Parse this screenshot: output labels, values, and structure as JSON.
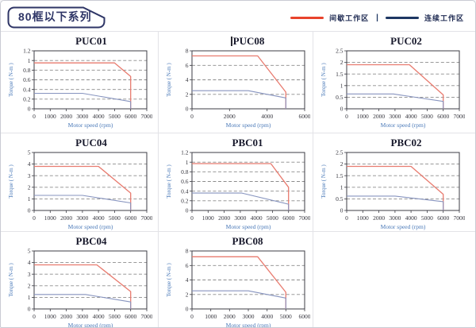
{
  "header": {
    "series_title": "80框以下系列",
    "legend_separator": "|",
    "legend": [
      {
        "name": "intermittent-work-zone",
        "label": "间歇工作区",
        "color": "#e8432c"
      },
      {
        "name": "continuous-work-zone",
        "label": "连续工作区",
        "color": "#1e3763"
      }
    ]
  },
  "colors": {
    "curve_red": "#e87b6f",
    "curve_blue": "#8794bf",
    "grid": "#8c8c8c",
    "axis": "#3c3c44",
    "tick_text": "#33333b",
    "axis_label": "#4a79b8",
    "title_text": "#17182b",
    "tag_border": "#2e3566",
    "cell_separator": "#e3e3e7",
    "page_border": "#c9cbd3"
  },
  "chart_data": [
    {
      "type": "line",
      "title": "PUC01",
      "cursor": false,
      "xlabel": "Motor speed (rpm)",
      "ylabel": "Torque ( N-m )",
      "xlim": [
        0,
        7000
      ],
      "ylim": [
        0,
        1.2
      ],
      "xticks": [
        0,
        1000,
        2000,
        3000,
        4000,
        5000,
        6000,
        7000
      ],
      "yticks": [
        0,
        0.2,
        0.4,
        0.6,
        0.8,
        1,
        1.2
      ],
      "grid": "horizontal-dashed",
      "legend_position": "shared-top-right",
      "series": [
        {
          "name": "间歇工作区",
          "color": "#e87b6f",
          "points": [
            [
              0,
              0.95
            ],
            [
              5000,
              0.95
            ],
            [
              6000,
              0.67
            ],
            [
              6000,
              0
            ]
          ]
        },
        {
          "name": "连续工作区",
          "color": "#8794bf",
          "points": [
            [
              0,
              0.32
            ],
            [
              3000,
              0.32
            ],
            [
              6000,
              0.15
            ],
            [
              6000,
              0
            ]
          ]
        }
      ]
    },
    {
      "type": "line",
      "title": "PUC08",
      "cursor": true,
      "xlabel": "Motor speed (rpm)",
      "ylabel": "Torque ( N-m )",
      "xlim": [
        0,
        6000
      ],
      "ylim": [
        0,
        8
      ],
      "xticks": [
        0,
        2000,
        4000,
        6000
      ],
      "yticks": [
        0,
        2,
        4,
        6,
        8
      ],
      "grid": "horizontal-dashed",
      "legend_position": "shared-top-right",
      "series": [
        {
          "name": "间歇工作区",
          "color": "#e87b6f",
          "points": [
            [
              0,
              7.3
            ],
            [
              3500,
              7.3
            ],
            [
              5000,
              2.3
            ],
            [
              5000,
              0
            ]
          ]
        },
        {
          "name": "连续工作区",
          "color": "#8794bf",
          "points": [
            [
              0,
              2.5
            ],
            [
              3000,
              2.5
            ],
            [
              5000,
              1.5
            ],
            [
              5000,
              0
            ]
          ]
        }
      ]
    },
    {
      "type": "line",
      "title": "PUC02",
      "cursor": false,
      "xlabel": "Motor speed (rpm)",
      "ylabel": "Torque ( N-m )",
      "xlim": [
        0,
        7000
      ],
      "ylim": [
        0,
        2.5
      ],
      "xticks": [
        0,
        1000,
        2000,
        3000,
        4000,
        5000,
        6000,
        7000
      ],
      "yticks": [
        0,
        0.5,
        1,
        1.5,
        2,
        2.5
      ],
      "grid": "horizontal-dashed",
      "legend_position": "shared-top-right",
      "series": [
        {
          "name": "间歇工作区",
          "color": "#e87b6f",
          "points": [
            [
              0,
              1.9
            ],
            [
              3900,
              1.9
            ],
            [
              6000,
              0.6
            ],
            [
              6000,
              0
            ]
          ]
        },
        {
          "name": "连续工作区",
          "color": "#8794bf",
          "points": [
            [
              0,
              0.64
            ],
            [
              2900,
              0.64
            ],
            [
              6000,
              0.32
            ],
            [
              6000,
              0
            ]
          ]
        }
      ]
    },
    {
      "type": "line",
      "title": "PUC04",
      "cursor": false,
      "xlabel": "Motor speed (rpm)",
      "ylabel": "Torque ( N-m )",
      "xlim": [
        0,
        7000
      ],
      "ylim": [
        0,
        5
      ],
      "xticks": [
        0,
        1000,
        2000,
        3000,
        4000,
        5000,
        6000,
        7000
      ],
      "yticks": [
        0,
        1,
        2,
        3,
        4,
        5
      ],
      "grid": "horizontal-dashed",
      "legend_position": "shared-top-right",
      "series": [
        {
          "name": "间歇工作区",
          "color": "#e87b6f",
          "points": [
            [
              0,
              3.8
            ],
            [
              4000,
              3.8
            ],
            [
              6000,
              1.5
            ],
            [
              6000,
              0
            ]
          ]
        },
        {
          "name": "连续工作区",
          "color": "#8794bf",
          "points": [
            [
              0,
              1.3
            ],
            [
              3000,
              1.3
            ],
            [
              6000,
              0.65
            ],
            [
              6000,
              0
            ]
          ]
        }
      ]
    },
    {
      "type": "line",
      "title": "PBC01",
      "cursor": false,
      "xlabel": "Motor speed (rpm)",
      "ylabel": "Torque ( N-m )",
      "xlim": [
        0,
        7000
      ],
      "ylim": [
        0,
        1.2
      ],
      "xticks": [
        0,
        1000,
        2000,
        3000,
        4000,
        5000,
        6000,
        7000
      ],
      "yticks": [
        0,
        0.2,
        0.4,
        0.6,
        0.8,
        1,
        1.2
      ],
      "grid": "horizontal-dashed",
      "legend_position": "shared-top-right",
      "series": [
        {
          "name": "间歇工作区",
          "color": "#e87b6f",
          "points": [
            [
              0,
              0.97
            ],
            [
              4900,
              0.97
            ],
            [
              6000,
              0.48
            ],
            [
              6000,
              0
            ]
          ]
        },
        {
          "name": "连续工作区",
          "color": "#8794bf",
          "points": [
            [
              0,
              0.36
            ],
            [
              3100,
              0.36
            ],
            [
              6000,
              0.13
            ],
            [
              6000,
              0
            ]
          ]
        }
      ]
    },
    {
      "type": "line",
      "title": "PBC02",
      "cursor": false,
      "xlabel": "Motor speed (rpm)",
      "ylabel": "Torque ( N-m )",
      "xlim": [
        0,
        7000
      ],
      "ylim": [
        0,
        2.5
      ],
      "xticks": [
        0,
        1000,
        2000,
        3000,
        4000,
        5000,
        6000,
        7000
      ],
      "yticks": [
        0,
        0.5,
        1,
        1.5,
        2,
        2.5
      ],
      "grid": "horizontal-dashed",
      "legend_position": "shared-top-right",
      "series": [
        {
          "name": "间歇工作区",
          "color": "#e87b6f",
          "points": [
            [
              0,
              1.9
            ],
            [
              4000,
              1.9
            ],
            [
              6000,
              0.7
            ],
            [
              6000,
              0
            ]
          ]
        },
        {
          "name": "连续工作区",
          "color": "#8794bf",
          "points": [
            [
              0,
              0.62
            ],
            [
              3000,
              0.62
            ],
            [
              6000,
              0.38
            ],
            [
              6000,
              0
            ]
          ]
        }
      ]
    },
    {
      "type": "line",
      "title": "PBC04",
      "cursor": false,
      "xlabel": "Motor speed (rpm)",
      "ylabel": "Torque ( N-m )",
      "xlim": [
        0,
        7000
      ],
      "ylim": [
        0,
        5
      ],
      "xticks": [
        0,
        1000,
        2000,
        3000,
        4000,
        5000,
        6000,
        7000
      ],
      "yticks": [
        0,
        1,
        2,
        3,
        4,
        5
      ],
      "grid": "horizontal-dashed",
      "legend_position": "shared-top-right",
      "series": [
        {
          "name": "间歇工作区",
          "color": "#e87b6f",
          "points": [
            [
              0,
              3.8
            ],
            [
              3900,
              3.8
            ],
            [
              6000,
              1.5
            ],
            [
              6000,
              0
            ]
          ]
        },
        {
          "name": "连续工作区",
          "color": "#8794bf",
          "points": [
            [
              0,
              1.25
            ],
            [
              3200,
              1.25
            ],
            [
              6000,
              0.6
            ],
            [
              6000,
              0
            ]
          ]
        }
      ]
    },
    {
      "type": "line",
      "title": "PBC08",
      "cursor": false,
      "xlabel": "Motor speed (rpm)",
      "ylabel": "Torque ( N-m )",
      "xlim": [
        0,
        6000
      ],
      "ylim": [
        0,
        8
      ],
      "xticks": [
        0,
        1000,
        2000,
        3000,
        4000,
        5000,
        6000
      ],
      "yticks": [
        0,
        2,
        4,
        6,
        8
      ],
      "grid": "horizontal-dashed",
      "legend_position": "shared-top-right",
      "series": [
        {
          "name": "间歇工作区",
          "color": "#e87b6f",
          "points": [
            [
              0,
              7.2
            ],
            [
              3500,
              7.2
            ],
            [
              5000,
              2.3
            ],
            [
              5000,
              0
            ]
          ]
        },
        {
          "name": "连续工作区",
          "color": "#8794bf",
          "points": [
            [
              0,
              2.5
            ],
            [
              3000,
              2.5
            ],
            [
              5000,
              1.5
            ],
            [
              5000,
              0
            ]
          ]
        }
      ]
    }
  ]
}
